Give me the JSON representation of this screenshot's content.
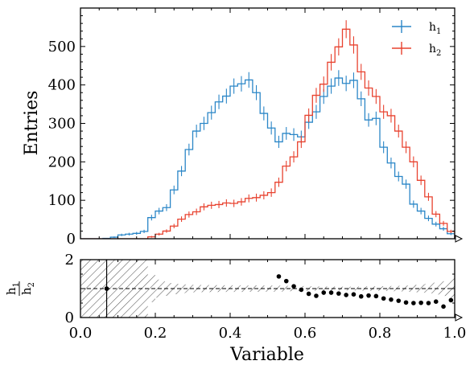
{
  "chart_data": [
    {
      "type": "histogram",
      "role": "main",
      "ylabel": "Entries",
      "xlim": [
        0.0,
        1.0
      ],
      "ylim": [
        0,
        600
      ],
      "yticks": [
        0,
        100,
        200,
        300,
        400,
        500
      ],
      "xticks": [
        0.0,
        0.2,
        0.4,
        0.6,
        0.8,
        1.0
      ],
      "bin_edges": [
        0.0,
        0.02,
        0.04,
        0.06,
        0.08,
        0.1,
        0.12,
        0.14,
        0.16,
        0.18,
        0.2,
        0.22,
        0.24,
        0.26,
        0.28,
        0.3,
        0.32,
        0.34,
        0.36,
        0.38,
        0.4,
        0.42,
        0.44,
        0.46,
        0.48,
        0.5,
        0.52,
        0.54,
        0.56,
        0.58,
        0.6,
        0.62,
        0.64,
        0.66,
        0.68,
        0.7,
        0.72,
        0.74,
        0.76,
        0.78,
        0.8,
        0.82,
        0.84,
        0.86,
        0.88,
        0.9,
        0.92,
        0.94,
        0.96,
        0.98,
        1.0
      ],
      "legend_position": "top-right",
      "series": [
        {
          "name": "h",
          "subscript": "1",
          "color": "#2a86c7",
          "counts": [
            0,
            0,
            0,
            1,
            4,
            10,
            12,
            14,
            19,
            55,
            72,
            81,
            127,
            176,
            232,
            280,
            300,
            328,
            356,
            371,
            397,
            403,
            413,
            380,
            326,
            288,
            252,
            274,
            271,
            265,
            303,
            330,
            370,
            397,
            418,
            404,
            412,
            364,
            309,
            313,
            238,
            197,
            162,
            142,
            90,
            72,
            53,
            38,
            26,
            13
          ]
        },
        {
          "name": "h",
          "subscript": "2",
          "color": "#e8422f",
          "counts": [
            0,
            0,
            0,
            0,
            0,
            0,
            0,
            0,
            0,
            5,
            12,
            20,
            33,
            51,
            63,
            70,
            83,
            87,
            89,
            93,
            92,
            96,
            105,
            107,
            113,
            120,
            147,
            189,
            213,
            252,
            321,
            373,
            402,
            459,
            499,
            545,
            504,
            434,
            392,
            370,
            330,
            320,
            280,
            238,
            200,
            152,
            109,
            64,
            40,
            19
          ]
        }
      ]
    },
    {
      "type": "scatter",
      "role": "ratio",
      "ylabel_top": "h",
      "ylabel_top_sub": "1",
      "ylabel_bottom": "h",
      "ylabel_bottom_sub": "2",
      "xlabel": "Variable",
      "xlim": [
        0.0,
        1.0
      ],
      "ylim": [
        0,
        2
      ],
      "yticks": [
        0,
        2
      ],
      "xticks": [
        0.0,
        0.2,
        0.4,
        0.6,
        0.8,
        1.0
      ],
      "tick_labels": [
        "0.0",
        "0.2",
        "0.4",
        "0.6",
        "0.8",
        "1.0"
      ],
      "y_tick_labels": [
        "0",
        "2"
      ],
      "reference_line": 1,
      "uncertainty_band": "hatched",
      "points": [
        {
          "x": 0.07,
          "y": 1.0,
          "yerr": 1.0
        },
        {
          "x": 0.53,
          "y": 1.42
        },
        {
          "x": 0.55,
          "y": 1.26
        },
        {
          "x": 0.57,
          "y": 1.08
        },
        {
          "x": 0.59,
          "y": 0.96
        },
        {
          "x": 0.61,
          "y": 0.82
        },
        {
          "x": 0.63,
          "y": 0.75
        },
        {
          "x": 0.65,
          "y": 0.86
        },
        {
          "x": 0.67,
          "y": 0.86
        },
        {
          "x": 0.69,
          "y": 0.83
        },
        {
          "x": 0.71,
          "y": 0.78
        },
        {
          "x": 0.73,
          "y": 0.8
        },
        {
          "x": 0.75,
          "y": 0.73
        },
        {
          "x": 0.77,
          "y": 0.76
        },
        {
          "x": 0.79,
          "y": 0.74
        },
        {
          "x": 0.81,
          "y": 0.66
        },
        {
          "x": 0.83,
          "y": 0.62
        },
        {
          "x": 0.85,
          "y": 0.58
        },
        {
          "x": 0.87,
          "y": 0.52
        },
        {
          "x": 0.89,
          "y": 0.5
        },
        {
          "x": 0.91,
          "y": 0.51
        },
        {
          "x": 0.93,
          "y": 0.5
        },
        {
          "x": 0.95,
          "y": 0.55
        },
        {
          "x": 0.97,
          "y": 0.38
        },
        {
          "x": 0.99,
          "y": 0.6
        }
      ]
    }
  ]
}
